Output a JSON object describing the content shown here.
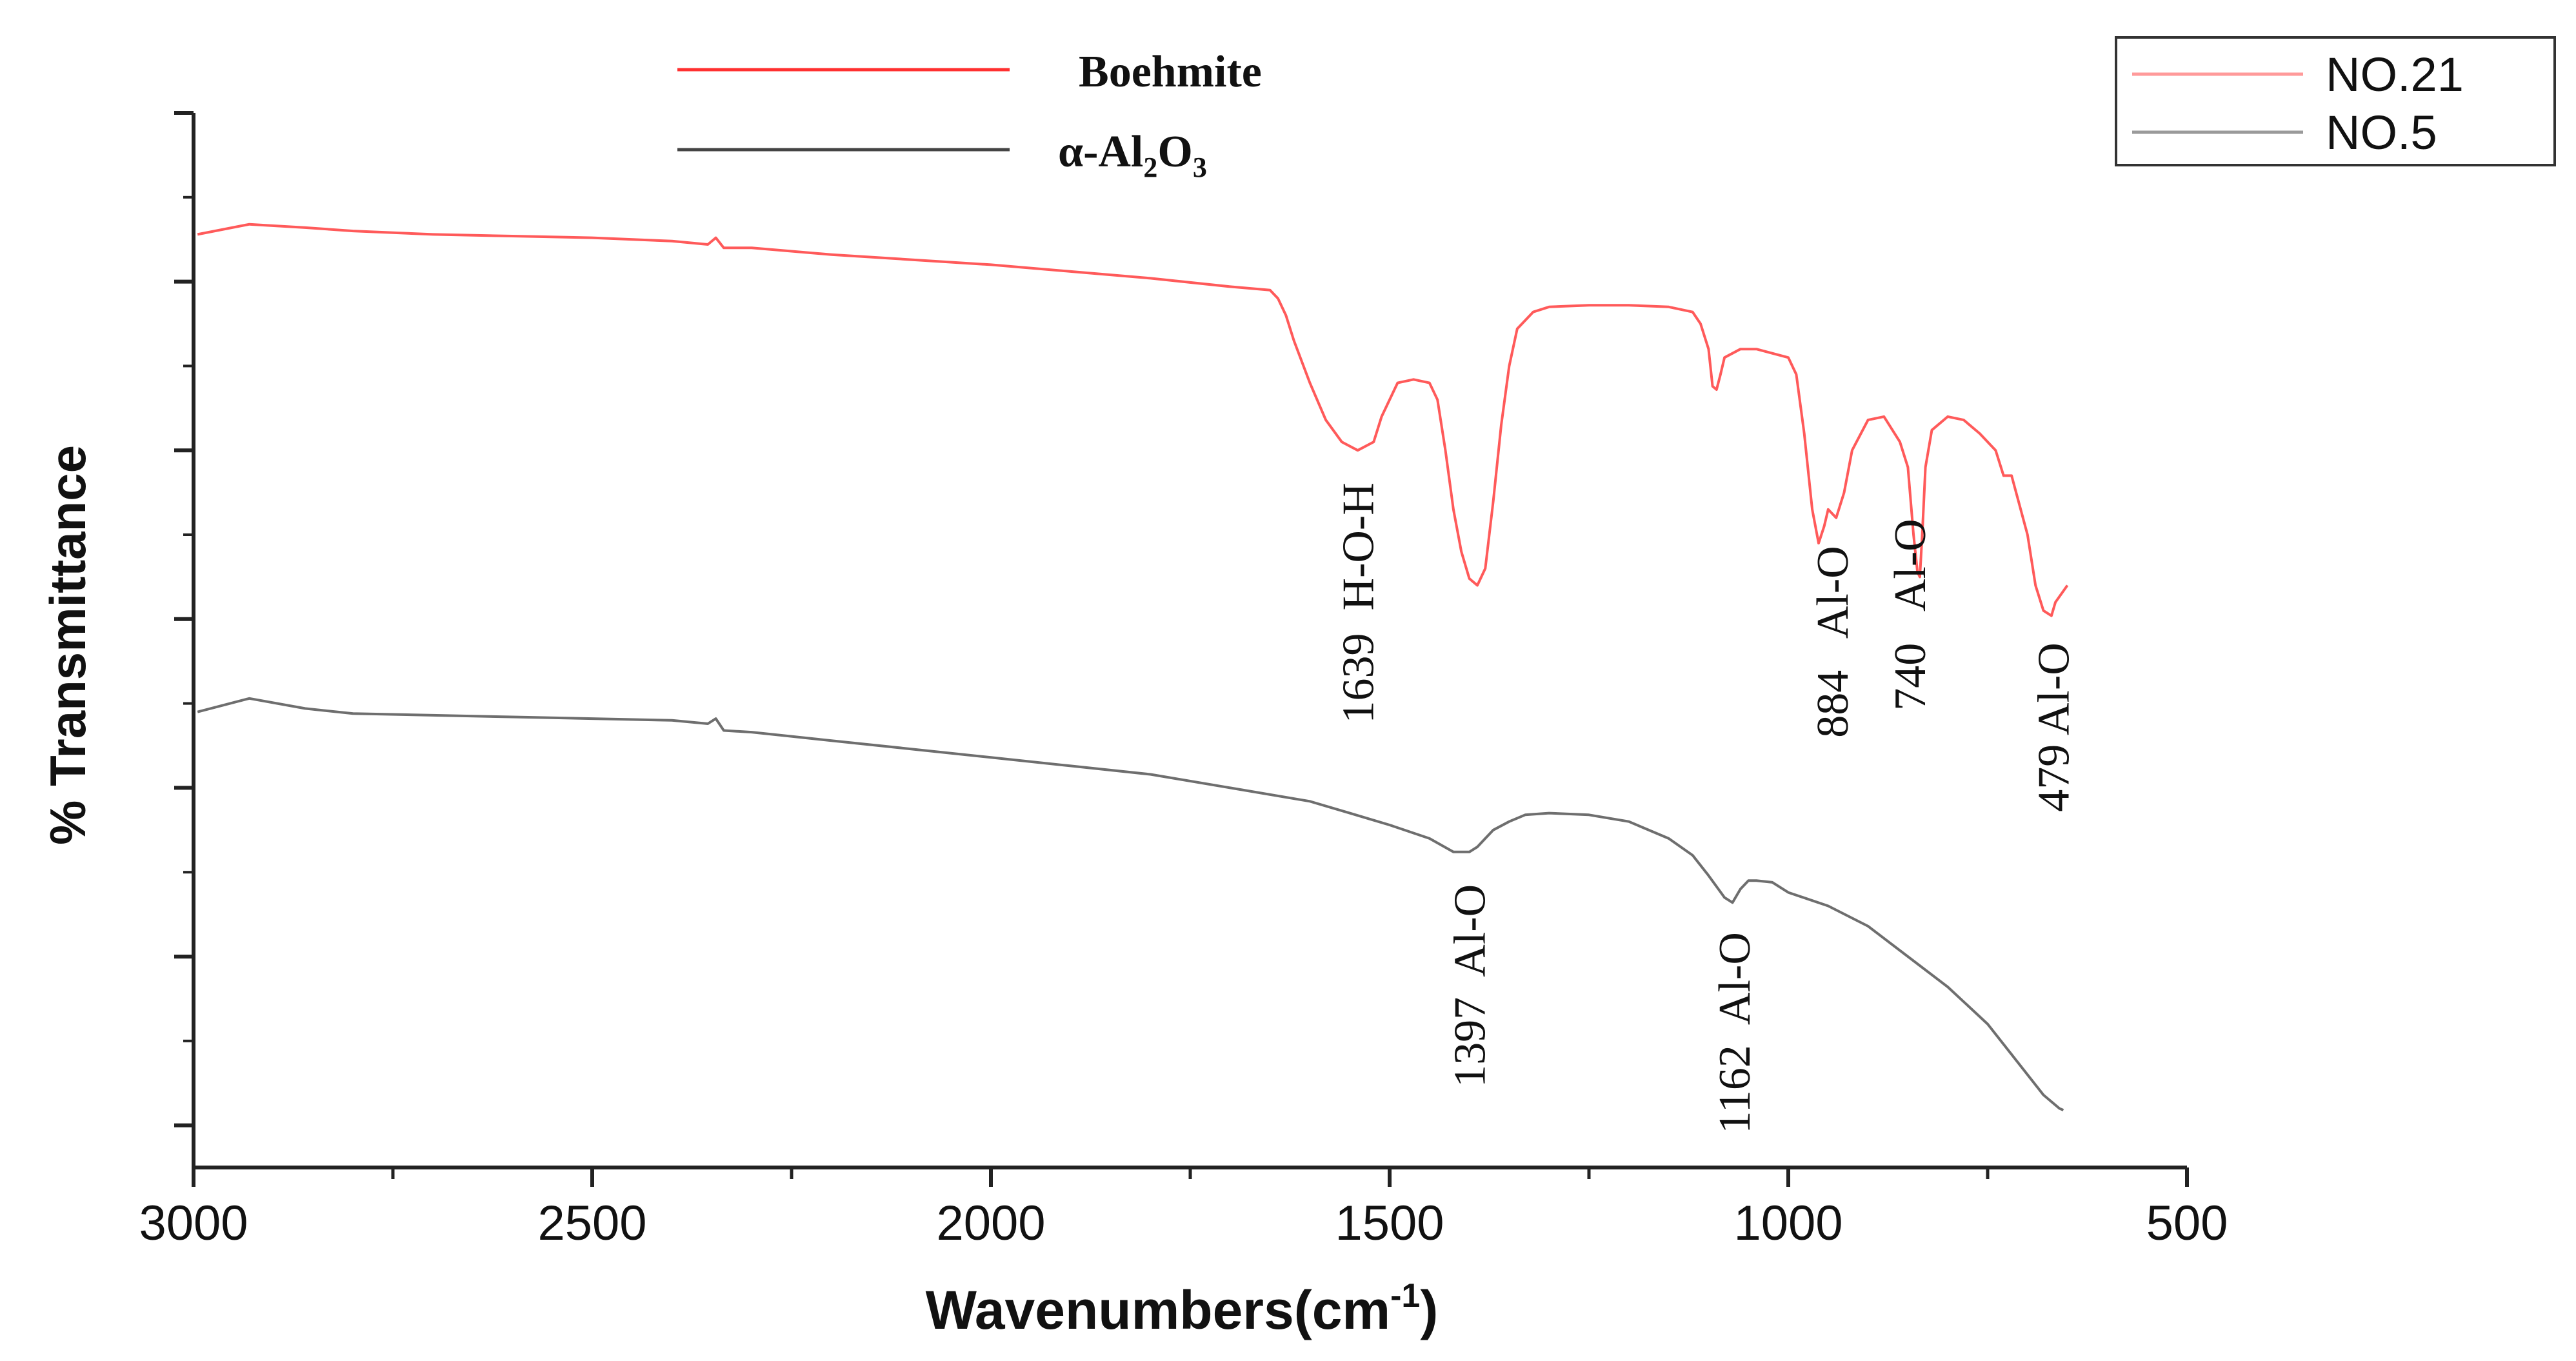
{
  "chart_data": {
    "type": "line",
    "xlabel_main": "Wavenumbers(cm",
    "xlabel_sup": "-1",
    "xlabel_close": ")",
    "ylabel": "% Transmittance",
    "xlim": [
      3000,
      500
    ],
    "x_reversed": true,
    "x_ticks": [
      3000,
      2500,
      2000,
      1500,
      1000,
      500
    ],
    "x_tick_labels": [
      "3000",
      "2500",
      "2000",
      "1500",
      "1000",
      "500"
    ],
    "y_ticks_relative": [
      0,
      1,
      2,
      3,
      4,
      5,
      6
    ],
    "ylim_relative": [
      -0.25,
      6
    ],
    "y_tick_labels_shown": false,
    "grid": false,
    "colors": {
      "NO.21": "#ff5a5a",
      "NO.5": "#6e6e6e",
      "axis": "#222222",
      "text": "#111111"
    },
    "legends": [
      {
        "placement": "top-center",
        "entries": [
          {
            "label": "Boehmite",
            "color": "#ff3030"
          },
          {
            "label_parts": [
              "α-Al",
              "2",
              "O",
              "3"
            ],
            "color": "#444444"
          }
        ]
      },
      {
        "placement": "top-right",
        "boxed": true,
        "entries": [
          {
            "label": "NO.21",
            "color": "#ff9a9a"
          },
          {
            "label": "NO.5",
            "color": "#9a9a9a"
          }
        ]
      }
    ],
    "series": [
      {
        "name": "NO.21",
        "x": [
          2995,
          2930,
          2860,
          2800,
          2700,
          2600,
          2500,
          2400,
          2355,
          2345,
          2335,
          2300,
          2200,
          2100,
          2000,
          1900,
          1800,
          1700,
          1650,
          1640,
          1630,
          1620,
          1600,
          1580,
          1560,
          1540,
          1520,
          1510,
          1490,
          1470,
          1450,
          1440,
          1430,
          1420,
          1410,
          1400,
          1390,
          1380,
          1370,
          1360,
          1350,
          1340,
          1320,
          1300,
          1250,
          1200,
          1150,
          1120,
          1110,
          1100,
          1095,
          1090,
          1085,
          1080,
          1060,
          1040,
          1000,
          990,
          980,
          970,
          962,
          955,
          950,
          940,
          930,
          920,
          900,
          880,
          860,
          850,
          843,
          838,
          835,
          832,
          828,
          820,
          800,
          780,
          760,
          740,
          730,
          720,
          700,
          690,
          680,
          670,
          665,
          650
        ],
        "y": [
          5.28,
          5.34,
          5.32,
          5.3,
          5.28,
          5.27,
          5.26,
          5.24,
          5.22,
          5.26,
          5.2,
          5.2,
          5.16,
          5.13,
          5.1,
          5.06,
          5.02,
          4.97,
          4.95,
          4.9,
          4.8,
          4.65,
          4.4,
          4.18,
          4.05,
          4.0,
          4.05,
          4.2,
          4.4,
          4.42,
          4.4,
          4.3,
          4.0,
          3.65,
          3.4,
          3.24,
          3.2,
          3.3,
          3.7,
          4.15,
          4.5,
          4.72,
          4.82,
          4.85,
          4.86,
          4.86,
          4.85,
          4.82,
          4.75,
          4.6,
          4.38,
          4.36,
          4.45,
          4.55,
          4.6,
          4.6,
          4.55,
          4.45,
          4.1,
          3.65,
          3.45,
          3.55,
          3.65,
          3.6,
          3.75,
          4.0,
          4.18,
          4.2,
          4.05,
          3.9,
          3.5,
          3.28,
          3.25,
          3.5,
          3.9,
          4.12,
          4.2,
          4.18,
          4.1,
          4.0,
          3.85,
          3.85,
          3.5,
          3.2,
          3.05,
          3.02,
          3.1,
          3.2
        ]
      },
      {
        "name": "NO.5",
        "x": [
          2995,
          2930,
          2860,
          2800,
          2700,
          2600,
          2500,
          2400,
          2355,
          2345,
          2335,
          2300,
          2200,
          2100,
          2000,
          1900,
          1800,
          1700,
          1600,
          1550,
          1500,
          1450,
          1420,
          1400,
          1390,
          1380,
          1370,
          1350,
          1330,
          1300,
          1250,
          1200,
          1150,
          1120,
          1100,
          1080,
          1070,
          1060,
          1050,
          1040,
          1020,
          1000,
          950,
          900,
          850,
          800,
          750,
          700,
          680,
          660,
          655
        ],
        "y": [
          2.45,
          2.53,
          2.47,
          2.44,
          2.43,
          2.42,
          2.41,
          2.4,
          2.38,
          2.41,
          2.34,
          2.33,
          2.28,
          2.23,
          2.18,
          2.13,
          2.08,
          2.0,
          1.92,
          1.85,
          1.78,
          1.7,
          1.62,
          1.62,
          1.65,
          1.7,
          1.75,
          1.8,
          1.84,
          1.85,
          1.84,
          1.8,
          1.7,
          1.6,
          1.48,
          1.35,
          1.32,
          1.4,
          1.45,
          1.45,
          1.44,
          1.38,
          1.3,
          1.18,
          1.0,
          0.82,
          0.6,
          0.3,
          0.18,
          0.1,
          0.09
        ]
      }
    ],
    "annotations": [
      {
        "series": "NO.21",
        "x": 1540,
        "text": "1639  H-O-H"
      },
      {
        "series": "NO.21",
        "x": 945,
        "text": "884   Al-O"
      },
      {
        "series": "NO.21",
        "x": 848,
        "text": "740   Al-O"
      },
      {
        "series": "NO.21",
        "x": 668,
        "text": "479 Al-O"
      },
      {
        "series": "NO.5",
        "x": 1400,
        "text": "1397  Al-O"
      },
      {
        "series": "NO.5",
        "x": 1068,
        "text": "1162  Al-O"
      }
    ]
  }
}
